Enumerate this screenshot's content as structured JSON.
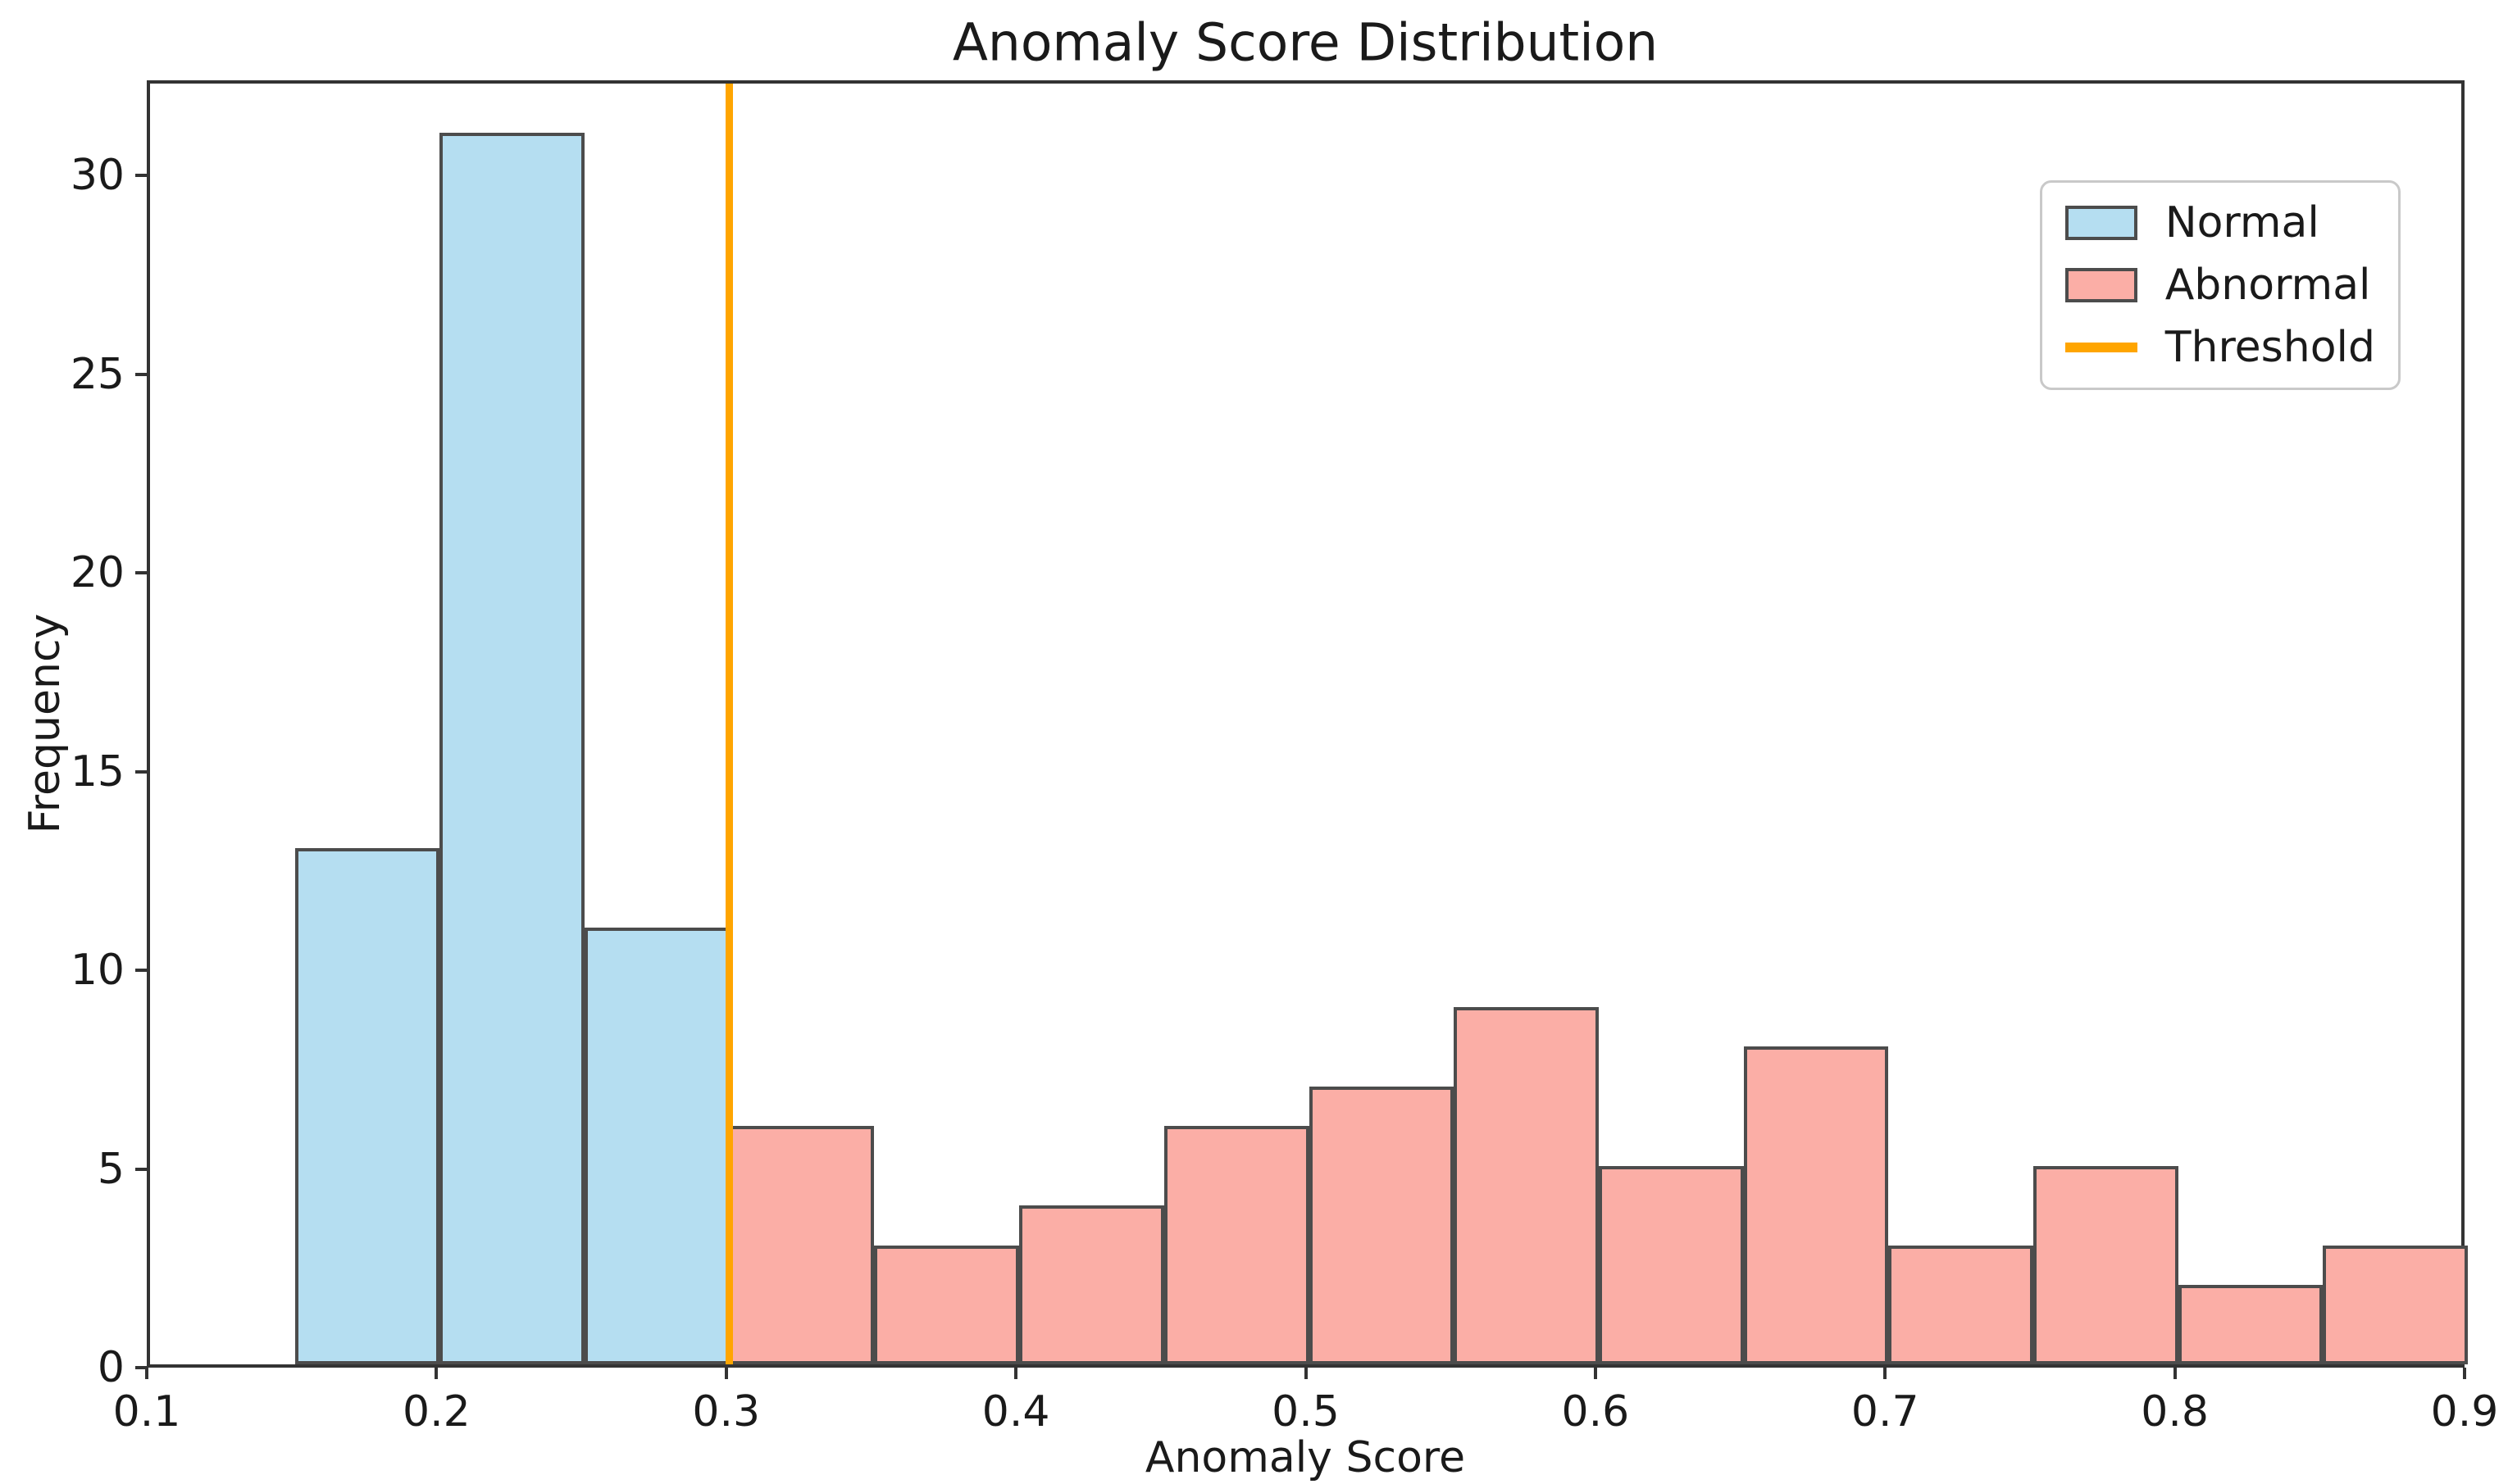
{
  "chart_data": {
    "type": "bar",
    "subtype": "histogram",
    "title": "Anomaly Score Distribution",
    "xlabel": "Anomaly Score",
    "ylabel": "Frequency",
    "xlim": [
      0.1,
      0.9
    ],
    "ylim": [
      0,
      32.4
    ],
    "bin_width": 0.05,
    "grid": false,
    "background_color": "#ffffff",
    "spine_color": "#333333",
    "text_color": "#1a1a1a",
    "bar_edge_color": "#4c4c4c",
    "x_ticks": [
      {
        "value": 0.1,
        "label": "0.1"
      },
      {
        "value": 0.2,
        "label": "0.2"
      },
      {
        "value": 0.3,
        "label": "0.3"
      },
      {
        "value": 0.4,
        "label": "0.4"
      },
      {
        "value": 0.5,
        "label": "0.5"
      },
      {
        "value": 0.6,
        "label": "0.6"
      },
      {
        "value": 0.7,
        "label": "0.7"
      },
      {
        "value": 0.8,
        "label": "0.8"
      },
      {
        "value": 0.9,
        "label": "0.9"
      }
    ],
    "y_ticks": [
      {
        "value": 0,
        "label": "0"
      },
      {
        "value": 5,
        "label": "5"
      },
      {
        "value": 10,
        "label": "10"
      },
      {
        "value": 15,
        "label": "15"
      },
      {
        "value": 20,
        "label": "20"
      },
      {
        "value": 25,
        "label": "25"
      },
      {
        "value": 30,
        "label": "30"
      }
    ],
    "series": [
      {
        "name": "Normal",
        "fill_color": "#b5def1",
        "bins": [
          {
            "start": 0.15,
            "end": 0.2,
            "count": 13
          },
          {
            "start": 0.2,
            "end": 0.25,
            "count": 31
          },
          {
            "start": 0.25,
            "end": 0.3,
            "count": 11
          }
        ]
      },
      {
        "name": "Abnormal",
        "fill_color": "#fbaea6",
        "bins": [
          {
            "start": 0.3,
            "end": 0.35,
            "count": 6
          },
          {
            "start": 0.35,
            "end": 0.4,
            "count": 3
          },
          {
            "start": 0.4,
            "end": 0.45,
            "count": 4
          },
          {
            "start": 0.45,
            "end": 0.5,
            "count": 6
          },
          {
            "start": 0.5,
            "end": 0.55,
            "count": 7
          },
          {
            "start": 0.55,
            "end": 0.6,
            "count": 9
          },
          {
            "start": 0.6,
            "end": 0.65,
            "count": 5
          },
          {
            "start": 0.65,
            "end": 0.7,
            "count": 8
          },
          {
            "start": 0.7,
            "end": 0.75,
            "count": 3
          },
          {
            "start": 0.75,
            "end": 0.8,
            "count": 5
          },
          {
            "start": 0.8,
            "end": 0.85,
            "count": 2
          },
          {
            "start": 0.85,
            "end": 0.9,
            "count": 3
          }
        ]
      }
    ],
    "threshold": {
      "label": "Threshold",
      "value": 0.3,
      "color": "#ffa500"
    },
    "legend": {
      "position": "upper right",
      "items": [
        {
          "label": "Normal",
          "swatch": "patch",
          "color": "#b5def1"
        },
        {
          "label": "Abnormal",
          "swatch": "patch",
          "color": "#fbaea6"
        },
        {
          "label": "Threshold",
          "swatch": "line",
          "color": "#ffa500"
        }
      ]
    }
  }
}
